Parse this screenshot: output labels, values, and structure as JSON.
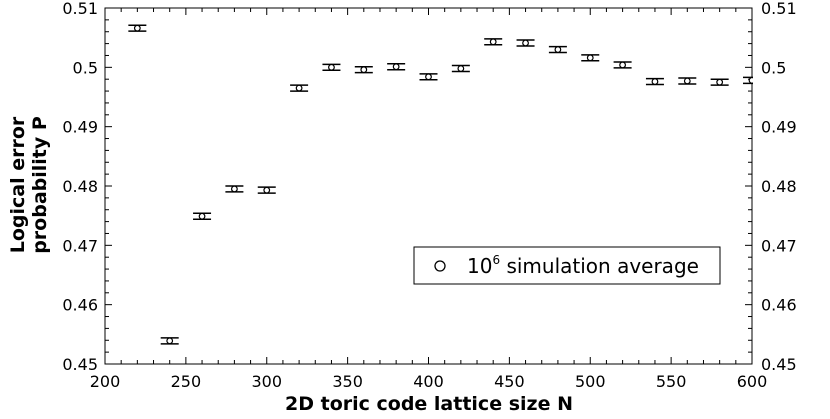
{
  "chart_data": {
    "type": "scatter",
    "title": "",
    "xlabel": "2D toric code lattice size N",
    "ylabel_lines": [
      "Logical error",
      "probability P"
    ],
    "xlim": [
      200,
      600
    ],
    "ylim": [
      0.45,
      0.51
    ],
    "x_ticks": [
      200,
      250,
      300,
      350,
      400,
      450,
      500,
      550,
      600
    ],
    "x_tick_labels": [
      "200",
      "250",
      "300",
      "350",
      "400",
      "450",
      "500",
      "550",
      "600"
    ],
    "y_ticks": [
      0.45,
      0.46,
      0.47,
      0.48,
      0.49,
      0.5,
      0.51
    ],
    "y_tick_labels": [
      "0.45",
      "0.46",
      "0.47",
      "0.48",
      "0.49",
      "0.5",
      "0.51"
    ],
    "right_axis_labels": true,
    "grid": false,
    "marker": "open-circle-with-errorbar",
    "series": [
      {
        "name": "10⁶ simulation average",
        "x": [
          220,
          240,
          260,
          280,
          300,
          320,
          340,
          360,
          380,
          400,
          420,
          440,
          460,
          480,
          500,
          520,
          540,
          560,
          580,
          600
        ],
        "y": [
          0.5066,
          0.4539,
          0.4749,
          0.4795,
          0.4793,
          0.4965,
          0.5,
          0.4996,
          0.5001,
          0.4984,
          0.4998,
          0.5043,
          0.5041,
          0.503,
          0.5016,
          0.5004,
          0.4976,
          0.4977,
          0.4975,
          0.4978
        ],
        "err": [
          0.0005,
          0.0005,
          0.0005,
          0.0005,
          0.0005,
          0.0005,
          0.0005,
          0.0005,
          0.0005,
          0.0005,
          0.0005,
          0.0005,
          0.0005,
          0.0005,
          0.0005,
          0.0005,
          0.0005,
          0.0005,
          0.0005,
          0.0005
        ]
      }
    ],
    "legend": {
      "placement": "lower-right",
      "label_base": "10",
      "label_sup": "6",
      "label_rest": " simulation average"
    }
  }
}
